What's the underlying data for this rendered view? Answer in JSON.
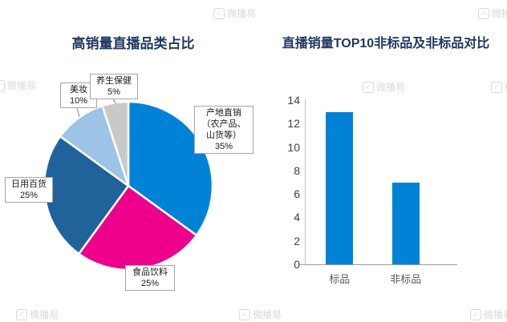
{
  "watermark": {
    "text": "微播易"
  },
  "pie_labels": [
    {
      "text": "产地直销\n（农产品、\n山货等）\n35%"
    },
    {
      "text": "食品饮料\n25%"
    },
    {
      "text": "日用百货\n25%"
    },
    {
      "text": "美妆\n10%"
    },
    {
      "text": "养生保健\n5%"
    }
  ],
  "chart_data": [
    {
      "type": "pie",
      "title": "高销量直播品类占比",
      "start_angle": "top",
      "direction": "clockwise",
      "slices": [
        {
          "label": "产地直销（农产品、山货等）",
          "value": 35,
          "color": "#0082D6"
        },
        {
          "label": "食品饮料",
          "value": 25,
          "color": "#EC008C"
        },
        {
          "label": "日用百货",
          "value": 25,
          "color": "#20639B"
        },
        {
          "label": "美妆",
          "value": 10,
          "color": "#9DC3E6"
        },
        {
          "label": "养生保健",
          "value": 5,
          "color": "#C9C9C9"
        }
      ]
    },
    {
      "type": "bar",
      "title": "直播销量TOP10非标品及非标品对比",
      "categories": [
        "标品",
        "非标品"
      ],
      "values": [
        13,
        7
      ],
      "ylim": [
        0,
        14
      ],
      "yticks": [
        0,
        2,
        4,
        6,
        8,
        10,
        12,
        14
      ],
      "bar_color": "#0082D6",
      "grid": false,
      "legend": "none"
    }
  ]
}
